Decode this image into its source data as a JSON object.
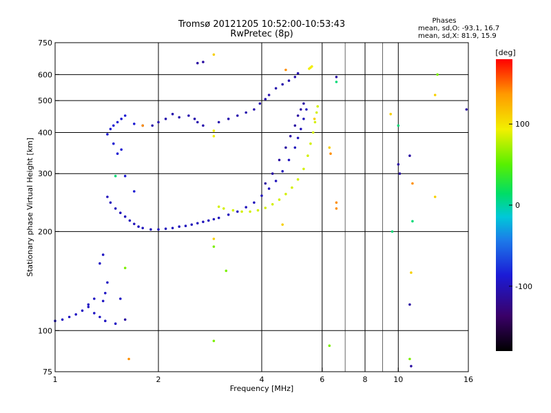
{
  "chart_data": {
    "type": "scatter",
    "title": "Tromsø 20121205 10:52:00-10:53:43",
    "subtitle": "RwPretec (8p)",
    "phases_box": {
      "heading": "Phases",
      "line_o": "mean, sd,O: -93.1, 16.7",
      "line_x": "mean, sd,X:  81.9, 15.9"
    },
    "xlabel": "Frequency [MHz]",
    "ylabel": "Stationary phase Virtual Height [km]",
    "x_scale": "log",
    "y_scale": "log",
    "xlim": [
      1,
      16
    ],
    "ylim": [
      75,
      750
    ],
    "x_ticks": [
      {
        "v": 1,
        "label": "1"
      },
      {
        "v": 2,
        "label": "2"
      },
      {
        "v": 4,
        "label": "4"
      },
      {
        "v": 6,
        "label": "6"
      },
      {
        "v": 8,
        "label": "8"
      },
      {
        "v": 10,
        "label": "10"
      },
      {
        "v": 16,
        "label": "16"
      }
    ],
    "x_grid": [
      2,
      4,
      6,
      8,
      10
    ],
    "x_minor_grid": [
      7,
      9
    ],
    "y_ticks": [
      {
        "v": 75,
        "label": "75"
      },
      {
        "v": 100,
        "label": "100"
      },
      {
        "v": 200,
        "label": "200"
      },
      {
        "v": 300,
        "label": "300"
      },
      {
        "v": 400,
        "label": "400"
      },
      {
        "v": 500,
        "label": "500"
      },
      {
        "v": 600,
        "label": "600"
      },
      {
        "v": 750,
        "label": "750"
      }
    ],
    "y_grid": [
      100,
      200,
      300,
      400,
      500,
      600
    ],
    "grid": true,
    "colorbar": {
      "label": "[deg]",
      "range": [
        -180,
        180
      ],
      "ticks": [
        {
          "v": 100,
          "label": "100"
        },
        {
          "v": 0,
          "label": "0"
        },
        {
          "v": -100,
          "label": "-100"
        }
      ],
      "position": "right"
    },
    "series": [
      {
        "phase": -95,
        "points": [
          [
            1.0,
            107
          ],
          [
            1.05,
            108
          ],
          [
            1.1,
            110
          ],
          [
            1.15,
            112
          ],
          [
            1.2,
            115
          ],
          [
            1.25,
            118
          ],
          [
            1.3,
            113
          ],
          [
            1.35,
            110
          ],
          [
            1.4,
            107
          ],
          [
            1.38,
            123
          ],
          [
            1.4,
            130
          ],
          [
            1.3,
            125
          ],
          [
            1.25,
            120
          ],
          [
            1.35,
            160
          ],
          [
            1.38,
            170
          ],
          [
            1.42,
            140
          ],
          [
            1.5,
            105
          ],
          [
            1.55,
            125
          ]
        ]
      },
      {
        "phase": -88,
        "points": [
          [
            1.42,
            395
          ],
          [
            1.45,
            410
          ],
          [
            1.48,
            420
          ],
          [
            1.52,
            430
          ],
          [
            1.56,
            440
          ],
          [
            1.6,
            450
          ],
          [
            1.7,
            425
          ],
          [
            1.8,
            420
          ],
          [
            1.48,
            370
          ],
          [
            1.52,
            345
          ],
          [
            1.56,
            355
          ],
          [
            1.6,
            295
          ],
          [
            1.7,
            265
          ]
        ]
      },
      {
        "phase": -98,
        "points": [
          [
            1.42,
            255
          ],
          [
            1.45,
            245
          ],
          [
            1.5,
            235
          ],
          [
            1.55,
            228
          ],
          [
            1.6,
            222
          ],
          [
            1.65,
            216
          ],
          [
            1.7,
            211
          ],
          [
            1.75,
            207
          ],
          [
            1.8,
            205
          ],
          [
            1.9,
            203
          ],
          [
            2.0,
            203
          ],
          [
            2.1,
            204
          ],
          [
            2.2,
            205
          ],
          [
            2.3,
            207
          ],
          [
            2.4,
            208
          ],
          [
            2.5,
            210
          ],
          [
            2.6,
            212
          ],
          [
            2.7,
            214
          ],
          [
            2.8,
            216
          ],
          [
            2.9,
            218
          ],
          [
            3.0,
            220
          ],
          [
            3.2,
            225
          ],
          [
            3.4,
            230
          ],
          [
            3.6,
            237
          ],
          [
            3.8,
            245
          ],
          [
            4.0,
            257
          ],
          [
            4.2,
            270
          ],
          [
            4.4,
            285
          ],
          [
            4.6,
            305
          ],
          [
            4.8,
            330
          ],
          [
            5.0,
            360
          ],
          [
            5.1,
            385
          ],
          [
            5.2,
            410
          ],
          [
            5.3,
            440
          ],
          [
            5.4,
            470
          ]
        ]
      },
      {
        "phase": -105,
        "points": [
          [
            1.92,
            420
          ],
          [
            2.0,
            430
          ],
          [
            2.1,
            440
          ],
          [
            2.2,
            455
          ],
          [
            2.3,
            445
          ],
          [
            2.45,
            450
          ],
          [
            2.55,
            440
          ],
          [
            2.6,
            430
          ],
          [
            2.7,
            420
          ],
          [
            3.0,
            430
          ],
          [
            3.2,
            440
          ],
          [
            3.4,
            450
          ],
          [
            3.6,
            460
          ],
          [
            3.8,
            470
          ],
          [
            3.95,
            490
          ],
          [
            4.1,
            505
          ],
          [
            4.2,
            520
          ],
          [
            4.4,
            545
          ],
          [
            4.6,
            560
          ],
          [
            4.8,
            575
          ],
          [
            5.0,
            590
          ],
          [
            5.1,
            605
          ]
        ]
      },
      {
        "phase": -110,
        "points": [
          [
            4.1,
            280
          ],
          [
            4.3,
            300
          ],
          [
            4.5,
            330
          ],
          [
            4.7,
            360
          ],
          [
            4.85,
            390
          ],
          [
            5.0,
            420
          ],
          [
            5.1,
            450
          ],
          [
            5.2,
            470
          ],
          [
            5.3,
            490
          ]
        ]
      },
      {
        "phase": 85,
        "points": [
          [
            3.0,
            238
          ],
          [
            3.1,
            235
          ],
          [
            3.3,
            232
          ],
          [
            3.5,
            230
          ],
          [
            3.7,
            230
          ],
          [
            3.9,
            232
          ],
          [
            4.1,
            236
          ],
          [
            4.3,
            242
          ],
          [
            4.5,
            250
          ],
          [
            4.7,
            260
          ],
          [
            4.9,
            272
          ],
          [
            5.1,
            288
          ],
          [
            5.3,
            310
          ],
          [
            5.45,
            340
          ],
          [
            5.55,
            370
          ],
          [
            5.65,
            400
          ],
          [
            5.72,
            430
          ],
          [
            5.78,
            460
          ],
          [
            5.82,
            480
          ]
        ]
      },
      {
        "phase": 95,
        "points": [
          [
            5.5,
            625
          ],
          [
            5.55,
            630
          ],
          [
            5.6,
            635
          ],
          [
            2.9,
            390
          ],
          [
            2.9,
            405
          ]
        ]
      },
      {
        "phase": 140,
        "points": [
          [
            1.64,
            82
          ],
          [
            1.8,
            420
          ],
          [
            6.35,
            345
          ],
          [
            6.6,
            245
          ],
          [
            6.6,
            235
          ],
          [
            11.0,
            280
          ],
          [
            4.7,
            620
          ]
        ]
      },
      {
        "phase": 60,
        "points": [
          [
            1.6,
            155
          ],
          [
            2.9,
            93
          ],
          [
            2.9,
            180
          ],
          [
            3.15,
            152
          ],
          [
            6.3,
            90
          ],
          [
            10.8,
            82
          ],
          [
            13.0,
            600
          ]
        ]
      },
      {
        "phase": -110,
        "points": [
          [
            1.6,
            108
          ],
          [
            2.6,
            650
          ],
          [
            2.7,
            655
          ],
          [
            6.6,
            590
          ],
          [
            10.0,
            320
          ],
          [
            10.1,
            300
          ],
          [
            10.8,
            340
          ],
          [
            10.9,
            78
          ],
          [
            10.8,
            120
          ],
          [
            15.8,
            470
          ]
        ]
      },
      {
        "phase": 110,
        "points": [
          [
            2.9,
            190
          ],
          [
            2.9,
            690
          ],
          [
            4.6,
            210
          ],
          [
            5.7,
            440
          ],
          [
            6.3,
            360
          ],
          [
            9.5,
            455
          ],
          [
            10.9,
            150
          ],
          [
            12.8,
            520
          ],
          [
            12.8,
            255
          ]
        ]
      },
      {
        "phase": 10,
        "points": [
          [
            1.5,
            295
          ],
          [
            6.6,
            570
          ],
          [
            9.6,
            200
          ],
          [
            11.0,
            215
          ],
          [
            10.0,
            420
          ]
        ]
      }
    ]
  }
}
